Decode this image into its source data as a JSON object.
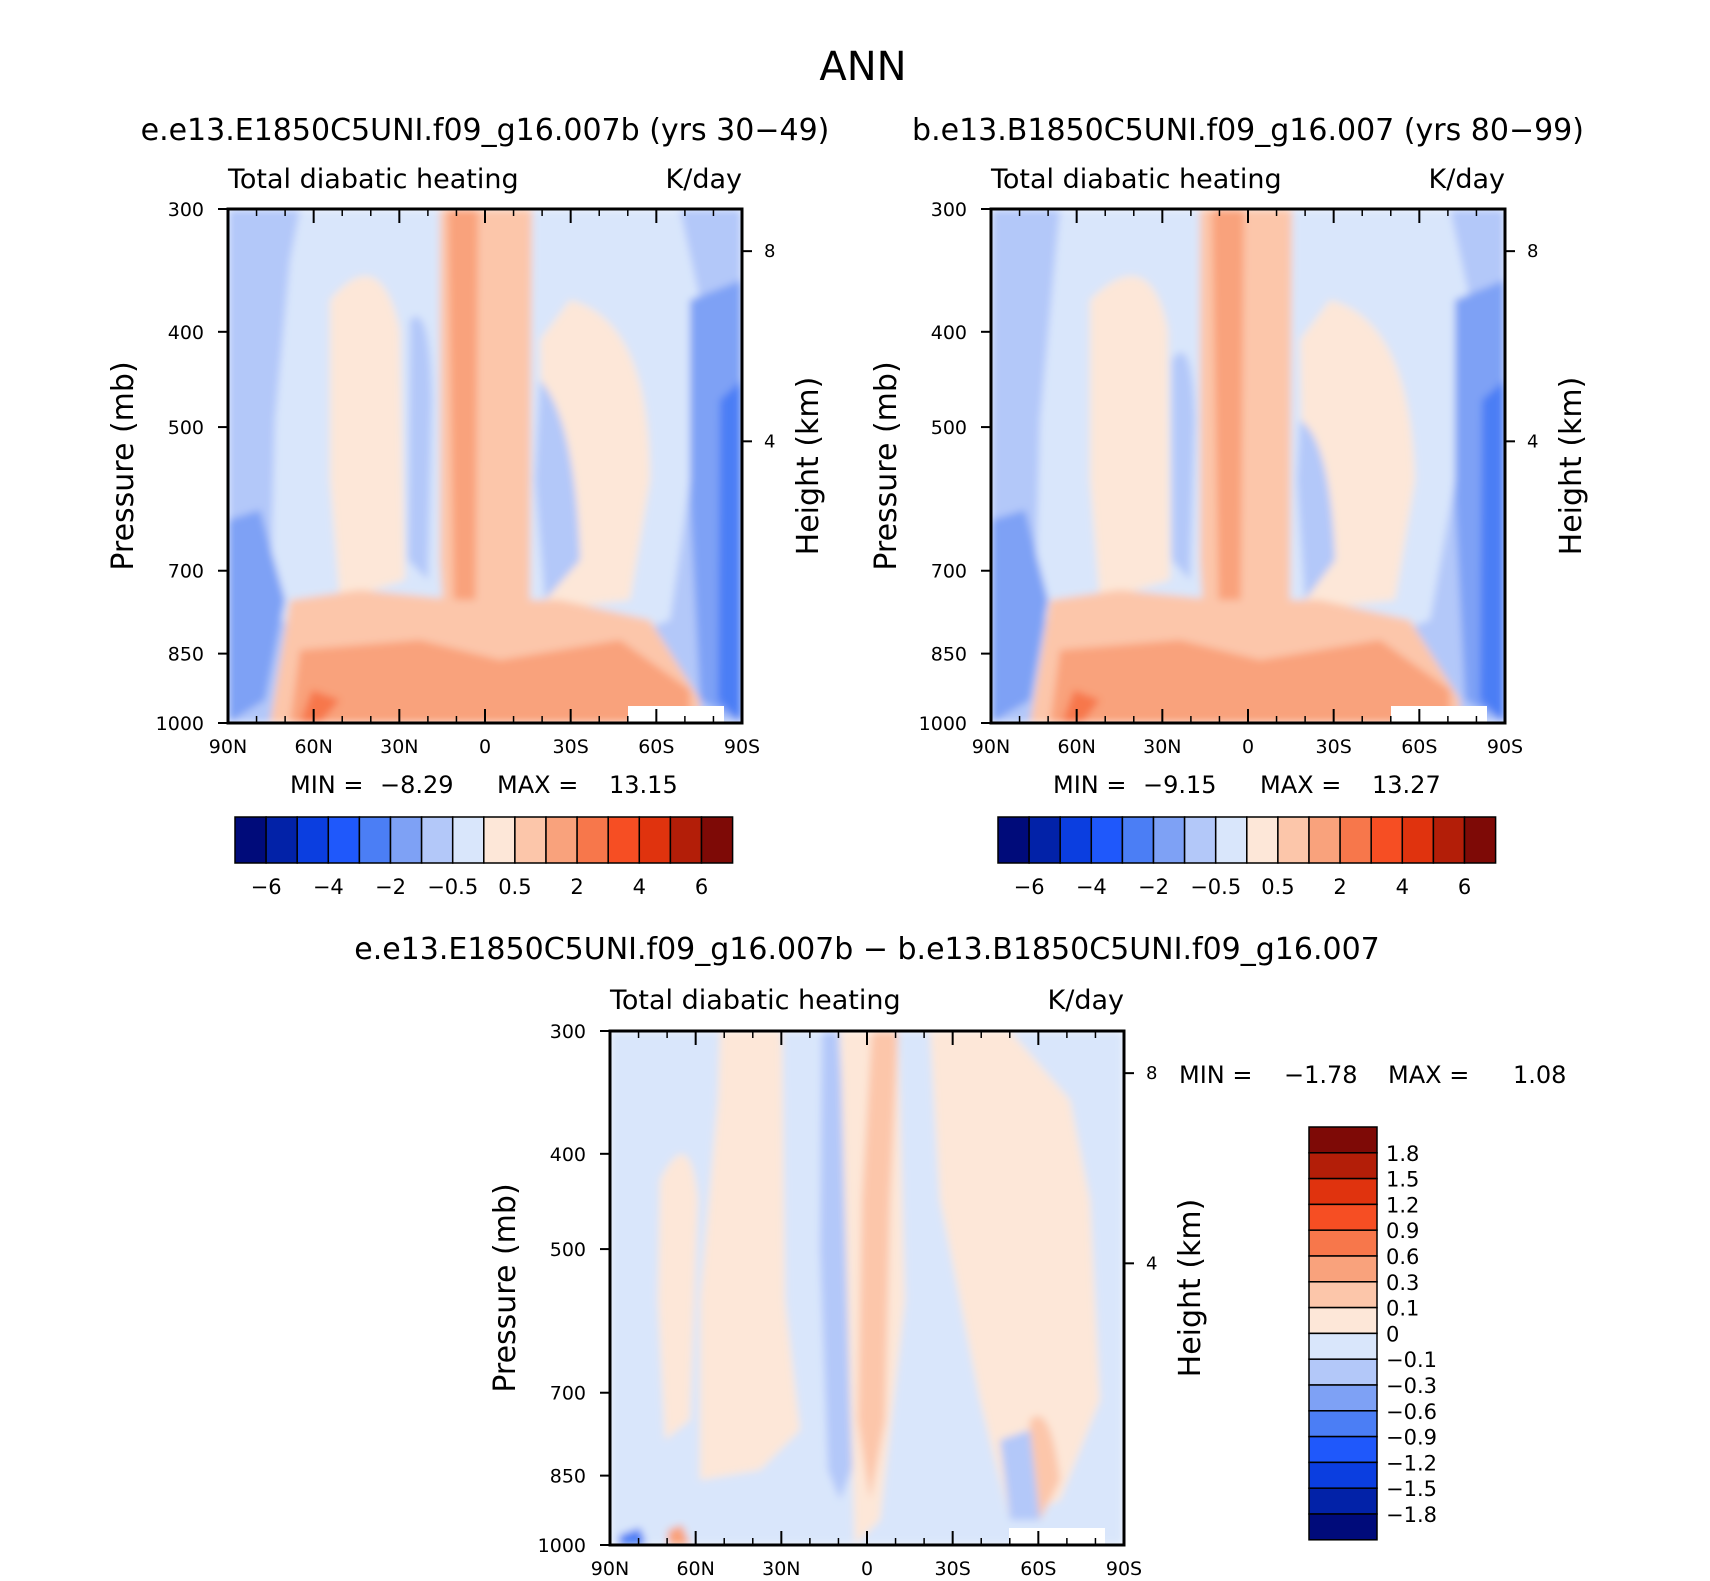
{
  "page": {
    "title": "ANN"
  },
  "colors": {
    "main_scale": [
      "#000b7a",
      "#0222a8",
      "#0b3ee0",
      "#1f58fb",
      "#4b7ef5",
      "#7ea1f5",
      "#b3c8f9",
      "#d9e6fb",
      "#fde7d8",
      "#fcc6aa",
      "#f9a27c",
      "#f7774b",
      "#f64e23",
      "#e0330e",
      "#b31e08",
      "#7e0a06"
    ],
    "diff_scale": [
      "#000b7a",
      "#0222a8",
      "#0b3ee0",
      "#1f58fb",
      "#4b7ef5",
      "#7ea1f5",
      "#b3c8f9",
      "#d9e6fb",
      "#fde7d8",
      "#fcc6aa",
      "#f9a27c",
      "#f7774b",
      "#f64e23",
      "#e0330e",
      "#b31e08",
      "#7e0a06"
    ]
  },
  "chart_data": [
    {
      "type": "heatmap",
      "title": "e.e13.E1850C5UNI.f09_g16.007b (yrs 30−49)",
      "left_label": "Total diabatic heating",
      "right_label": "K/day",
      "ylabel": "Pressure (mb)",
      "ylabel_right": "Height (km)",
      "x_ticks": [
        "90N",
        "60N",
        "30N",
        "0",
        "30S",
        "60S",
        "90S"
      ],
      "y_ticks": [
        "300",
        "400",
        "500",
        "700",
        "850",
        "1000"
      ],
      "y_right_ticks": [
        "8",
        "4"
      ],
      "ylim": [
        1000,
        300
      ],
      "stats": {
        "min_label": "MIN =",
        "min": "−8.29",
        "max_label": "MAX =",
        "max": "13.15"
      },
      "colorbar_labels": [
        "−6",
        "−4",
        "−2",
        "−0.5",
        "0.5",
        "2",
        "4",
        "6"
      ]
    },
    {
      "type": "heatmap",
      "title": "b.e13.B1850C5UNI.f09_g16.007 (yrs 80−99)",
      "left_label": "Total diabatic heating",
      "right_label": "K/day",
      "ylabel": "Pressure (mb)",
      "ylabel_right": "Height (km)",
      "x_ticks": [
        "90N",
        "60N",
        "30N",
        "0",
        "30S",
        "60S",
        "90S"
      ],
      "y_ticks": [
        "300",
        "400",
        "500",
        "700",
        "850",
        "1000"
      ],
      "y_right_ticks": [
        "8",
        "4"
      ],
      "ylim": [
        1000,
        300
      ],
      "stats": {
        "min_label": "MIN =",
        "min": "−9.15",
        "max_label": "MAX =",
        "max": "13.27"
      },
      "colorbar_labels": [
        "−6",
        "−4",
        "−2",
        "−0.5",
        "0.5",
        "2",
        "4",
        "6"
      ]
    },
    {
      "type": "heatmap",
      "title": "e.e13.E1850C5UNI.f09_g16.007b − b.e13.B1850C5UNI.f09_g16.007",
      "left_label": "Total diabatic heating",
      "right_label": "K/day",
      "ylabel": "Pressure (mb)",
      "ylabel_right": "Height (km)",
      "x_ticks": [
        "90N",
        "60N",
        "30N",
        "0",
        "30S",
        "60S",
        "90S"
      ],
      "y_ticks": [
        "300",
        "400",
        "500",
        "700",
        "850",
        "1000"
      ],
      "y_right_ticks": [
        "8",
        "4"
      ],
      "ylim": [
        1000,
        300
      ],
      "stats": {
        "min_label": "MIN =",
        "min": "−1.78",
        "max_label": "MAX =",
        "max": "1.08"
      },
      "colorbar_labels": [
        "1.8",
        "1.5",
        "1.2",
        "0.9",
        "0.6",
        "0.3",
        "0.1",
        "0",
        "−0.1",
        "−0.3",
        "−0.6",
        "−0.9",
        "−1.2",
        "−1.5",
        "−1.8"
      ]
    }
  ]
}
